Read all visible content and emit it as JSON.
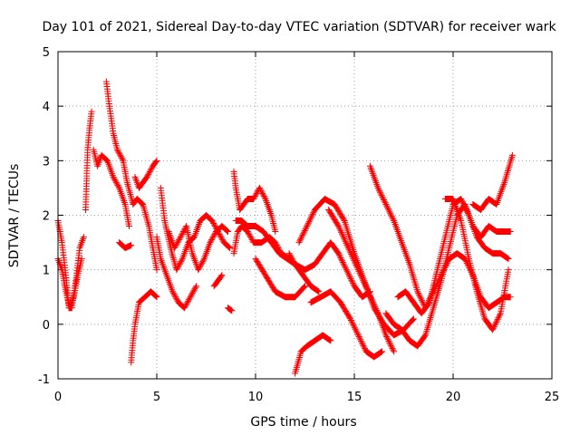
{
  "chart_data": {
    "type": "scatter",
    "title": "Day 101 of 2021, Sidereal Day-to-day VTEC variation (SDTVAR) for receiver wark",
    "xlabel": "GPS time / hours",
    "ylabel": "SDTVAR / TECUs",
    "xlim": [
      0,
      25
    ],
    "ylim": [
      -1,
      5
    ],
    "xticks": [
      "0",
      "5",
      "10",
      "15",
      "20",
      "25"
    ],
    "yticks": [
      "-1",
      "0",
      "1",
      "2",
      "3",
      "4",
      "5"
    ],
    "grid": true,
    "marker": "+",
    "color": "#ff0000",
    "tracks": [
      [
        [
          0.0,
          1.9
        ],
        [
          0.2,
          1.5
        ],
        [
          0.4,
          0.9
        ],
        [
          0.55,
          0.3
        ],
        [
          0.7,
          0.3
        ],
        [
          0.9,
          0.8
        ],
        [
          1.1,
          1.4
        ],
        [
          1.3,
          1.6
        ]
      ],
      [
        [
          0.0,
          1.2
        ],
        [
          0.2,
          1.0
        ],
        [
          0.4,
          0.6
        ],
        [
          0.6,
          0.3
        ],
        [
          0.8,
          0.5
        ],
        [
          1.0,
          0.9
        ],
        [
          1.2,
          1.2
        ]
      ],
      [
        [
          1.4,
          2.1
        ],
        [
          1.5,
          3.2
        ],
        [
          1.6,
          3.6
        ],
        [
          1.7,
          3.9
        ]
      ],
      [
        [
          1.8,
          3.2
        ],
        [
          2.0,
          2.9
        ],
        [
          2.2,
          3.1
        ],
        [
          2.5,
          3.0
        ],
        [
          2.8,
          2.7
        ],
        [
          3.1,
          2.5
        ],
        [
          3.4,
          2.2
        ],
        [
          3.6,
          1.8
        ]
      ],
      [
        [
          2.45,
          4.45
        ],
        [
          2.6,
          4.0
        ],
        [
          2.8,
          3.5
        ],
        [
          3.0,
          3.2
        ],
        [
          3.3,
          3.0
        ],
        [
          3.5,
          2.6
        ],
        [
          3.8,
          2.2
        ],
        [
          4.0,
          2.3
        ],
        [
          4.3,
          2.2
        ],
        [
          4.6,
          1.8
        ],
        [
          4.8,
          1.4
        ],
        [
          5.0,
          1.0
        ]
      ],
      [
        [
          3.1,
          1.5
        ],
        [
          3.4,
          1.4
        ],
        [
          3.7,
          1.45
        ]
      ],
      [
        [
          3.7,
          -0.7
        ],
        [
          3.8,
          -0.3
        ],
        [
          3.9,
          0.0
        ],
        [
          4.1,
          0.4
        ],
        [
          4.4,
          0.5
        ],
        [
          4.7,
          0.6
        ],
        [
          5.0,
          0.5
        ]
      ],
      [
        [
          3.9,
          2.7
        ],
        [
          4.1,
          2.5
        ],
        [
          4.3,
          2.6
        ],
        [
          4.5,
          2.7
        ],
        [
          4.8,
          2.9
        ],
        [
          5.0,
          3.0
        ]
      ],
      [
        [
          5.0,
          1.6
        ],
        [
          5.2,
          1.2
        ],
        [
          5.5,
          0.9
        ],
        [
          5.8,
          0.6
        ],
        [
          6.1,
          0.4
        ],
        [
          6.4,
          0.3
        ],
        [
          6.7,
          0.5
        ],
        [
          7.0,
          0.7
        ]
      ],
      [
        [
          5.2,
          2.5
        ],
        [
          5.4,
          1.9
        ],
        [
          5.7,
          1.4
        ],
        [
          6.0,
          1.0
        ],
        [
          6.3,
          1.2
        ],
        [
          6.6,
          1.5
        ],
        [
          6.9,
          1.6
        ],
        [
          7.2,
          1.9
        ],
        [
          7.5,
          2.0
        ],
        [
          7.8,
          1.9
        ],
        [
          8.1,
          1.7
        ],
        [
          8.4,
          1.5
        ],
        [
          8.7,
          1.4
        ]
      ],
      [
        [
          5.6,
          1.7
        ],
        [
          5.9,
          1.4
        ],
        [
          6.2,
          1.6
        ],
        [
          6.5,
          1.8
        ],
        [
          6.8,
          1.3
        ],
        [
          7.1,
          1.0
        ],
        [
          7.4,
          1.2
        ],
        [
          7.7,
          1.5
        ],
        [
          8.0,
          1.7
        ],
        [
          8.3,
          1.8
        ],
        [
          8.6,
          1.7
        ]
      ],
      [
        [
          7.9,
          0.7
        ],
        [
          8.1,
          0.8
        ],
        [
          8.3,
          0.9
        ]
      ],
      [
        [
          8.6,
          0.3
        ],
        [
          8.8,
          0.25
        ]
      ],
      [
        [
          8.9,
          2.8
        ],
        [
          9.0,
          2.5
        ],
        [
          9.2,
          2.1
        ],
        [
          9.4,
          2.2
        ],
        [
          9.6,
          2.3
        ],
        [
          9.9,
          2.3
        ],
        [
          10.2,
          2.5
        ],
        [
          10.5,
          2.3
        ],
        [
          10.8,
          2.0
        ],
        [
          11.0,
          1.7
        ]
      ],
      [
        [
          8.9,
          1.3
        ],
        [
          9.1,
          1.7
        ],
        [
          9.3,
          1.8
        ],
        [
          9.6,
          1.7
        ],
        [
          9.9,
          1.5
        ],
        [
          10.3,
          1.5
        ],
        [
          10.7,
          1.6
        ],
        [
          11.0,
          1.5
        ],
        [
          11.3,
          1.3
        ],
        [
          11.7,
          1.2
        ]
      ],
      [
        [
          9.0,
          1.9
        ],
        [
          9.3,
          1.9
        ],
        [
          9.6,
          1.8
        ],
        [
          10.0,
          1.8
        ],
        [
          10.4,
          1.7
        ],
        [
          10.8,
          1.5
        ],
        [
          11.2,
          1.3
        ],
        [
          11.6,
          1.2
        ],
        [
          12.0,
          1.1
        ],
        [
          12.4,
          0.9
        ],
        [
          12.8,
          0.7
        ],
        [
          13.2,
          0.6
        ]
      ],
      [
        [
          10.0,
          1.2
        ],
        [
          10.5,
          0.9
        ],
        [
          11.0,
          0.6
        ],
        [
          11.5,
          0.5
        ],
        [
          12.0,
          0.5
        ],
        [
          12.5,
          0.7
        ]
      ],
      [
        [
          12.0,
          -0.9
        ],
        [
          12.3,
          -0.5
        ],
        [
          12.6,
          -0.4
        ],
        [
          13.0,
          -0.3
        ],
        [
          13.4,
          -0.2
        ],
        [
          13.8,
          -0.3
        ]
      ],
      [
        [
          11.7,
          1.3
        ],
        [
          12.0,
          1.1
        ],
        [
          12.5,
          1.0
        ],
        [
          13.0,
          1.1
        ],
        [
          13.4,
          1.3
        ],
        [
          13.8,
          1.5
        ],
        [
          14.2,
          1.3
        ],
        [
          14.6,
          1.0
        ],
        [
          15.0,
          0.7
        ],
        [
          15.4,
          0.5
        ],
        [
          15.8,
          0.6
        ]
      ],
      [
        [
          12.2,
          1.5
        ],
        [
          12.6,
          1.8
        ],
        [
          13.0,
          2.1
        ],
        [
          13.5,
          2.3
        ],
        [
          14.0,
          2.2
        ],
        [
          14.5,
          1.9
        ],
        [
          15.0,
          1.3
        ],
        [
          15.5,
          0.8
        ],
        [
          16.0,
          0.3
        ],
        [
          16.5,
          0.0
        ],
        [
          17.0,
          -0.2
        ],
        [
          17.5,
          -0.1
        ],
        [
          18.0,
          0.1
        ]
      ],
      [
        [
          12.8,
          0.4
        ],
        [
          13.3,
          0.5
        ],
        [
          13.8,
          0.6
        ],
        [
          14.3,
          0.4
        ],
        [
          14.8,
          0.1
        ],
        [
          15.2,
          -0.2
        ],
        [
          15.6,
          -0.5
        ],
        [
          16.0,
          -0.6
        ],
        [
          16.4,
          -0.5
        ]
      ],
      [
        [
          13.7,
          2.1
        ],
        [
          14.2,
          1.8
        ],
        [
          14.7,
          1.4
        ],
        [
          15.2,
          1.0
        ],
        [
          15.7,
          0.6
        ],
        [
          16.2,
          0.2
        ],
        [
          16.6,
          -0.2
        ],
        [
          17.0,
          -0.5
        ]
      ],
      [
        [
          15.8,
          2.9
        ],
        [
          16.2,
          2.5
        ],
        [
          16.6,
          2.2
        ],
        [
          17.0,
          1.9
        ],
        [
          17.4,
          1.5
        ],
        [
          17.8,
          1.1
        ],
        [
          18.2,
          0.6
        ],
        [
          18.6,
          0.3
        ],
        [
          19.0,
          0.6
        ],
        [
          19.4,
          0.9
        ],
        [
          19.8,
          1.2
        ],
        [
          20.2,
          1.3
        ],
        [
          20.6,
          1.2
        ],
        [
          21.0,
          0.9
        ],
        [
          21.4,
          0.5
        ],
        [
          21.8,
          0.3
        ],
        [
          22.2,
          0.4
        ],
        [
          22.6,
          0.5
        ],
        [
          22.9,
          0.5
        ]
      ],
      [
        [
          17.2,
          0.5
        ],
        [
          17.6,
          0.6
        ],
        [
          18.0,
          0.4
        ],
        [
          18.4,
          0.2
        ],
        [
          18.8,
          0.4
        ],
        [
          19.2,
          1.0
        ],
        [
          19.6,
          1.6
        ],
        [
          20.0,
          2.2
        ],
        [
          20.4,
          2.3
        ],
        [
          20.8,
          2.0
        ],
        [
          21.2,
          1.6
        ],
        [
          21.6,
          1.4
        ],
        [
          22.0,
          1.3
        ],
        [
          22.4,
          1.3
        ],
        [
          22.8,
          1.2
        ]
      ],
      [
        [
          16.6,
          0.2
        ],
        [
          17.0,
          0.0
        ],
        [
          17.4,
          -0.1
        ],
        [
          17.8,
          -0.3
        ],
        [
          18.2,
          -0.4
        ],
        [
          18.6,
          -0.2
        ],
        [
          19.0,
          0.3
        ],
        [
          19.4,
          0.8
        ],
        [
          19.8,
          1.4
        ],
        [
          20.2,
          2.0
        ],
        [
          20.6,
          2.2
        ],
        [
          21.0,
          1.8
        ],
        [
          21.4,
          1.6
        ],
        [
          21.8,
          1.8
        ],
        [
          22.2,
          1.7
        ],
        [
          22.6,
          1.7
        ],
        [
          22.9,
          1.7
        ]
      ],
      [
        [
          19.6,
          2.3
        ],
        [
          20.0,
          2.3
        ],
        [
          20.4,
          1.9
        ],
        [
          20.8,
          1.2
        ],
        [
          21.2,
          0.6
        ],
        [
          21.6,
          0.1
        ],
        [
          22.0,
          -0.1
        ],
        [
          22.4,
          0.2
        ],
        [
          22.8,
          1.0
        ]
      ],
      [
        [
          21.0,
          2.2
        ],
        [
          21.4,
          2.1
        ],
        [
          21.8,
          2.3
        ],
        [
          22.2,
          2.2
        ],
        [
          22.6,
          2.6
        ],
        [
          23.0,
          3.1
        ]
      ]
    ]
  }
}
